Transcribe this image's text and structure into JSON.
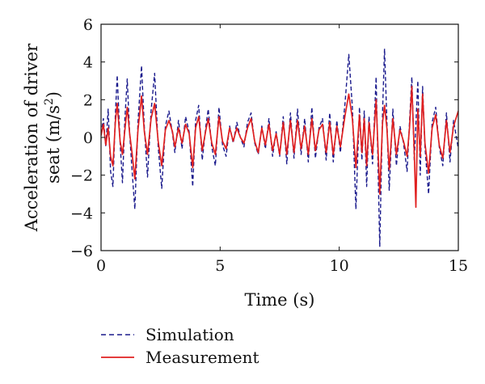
{
  "chart_data": {
    "type": "line",
    "title": "",
    "xlabel": "Time (s)",
    "ylabel_line1": "Acceleration of driver",
    "ylabel_line2_pre": "seat (m/s",
    "ylabel_line2_sup": "2",
    "ylabel_line2_post": ")",
    "xlim": [
      0,
      15
    ],
    "ylim": [
      -6,
      6
    ],
    "x_ticks": [
      0,
      5,
      10,
      15
    ],
    "x_tick_labels": [
      "0",
      "5",
      "10",
      "15"
    ],
    "y_ticks": [
      -6,
      -4,
      -2,
      0,
      2,
      4,
      6
    ],
    "y_tick_labels": [
      "−6",
      "−4",
      "−2",
      "0",
      "2",
      "4",
      "6"
    ],
    "grid": false,
    "legend_position": "below",
    "series": [
      {
        "name": "Simulation",
        "color": "#1a1a8c",
        "style": "dashed",
        "points": [
          [
            0.0,
            0.2
          ],
          [
            0.1,
            1.0
          ],
          [
            0.2,
            -0.5
          ],
          [
            0.3,
            1.5
          ],
          [
            0.4,
            -1.8
          ],
          [
            0.5,
            -2.6
          ],
          [
            0.6,
            1.2
          ],
          [
            0.68,
            3.3
          ],
          [
            0.8,
            -0.3
          ],
          [
            0.9,
            -2.4
          ],
          [
            1.0,
            1.0
          ],
          [
            1.1,
            3.1
          ],
          [
            1.2,
            0.2
          ],
          [
            1.3,
            -1.7
          ],
          [
            1.42,
            -3.8
          ],
          [
            1.55,
            0.8
          ],
          [
            1.7,
            3.8
          ],
          [
            1.82,
            0.5
          ],
          [
            1.95,
            -2.1
          ],
          [
            2.1,
            1.4
          ],
          [
            2.25,
            3.4
          ],
          [
            2.4,
            -0.5
          ],
          [
            2.55,
            -2.7
          ],
          [
            2.7,
            0.6
          ],
          [
            2.85,
            1.4
          ],
          [
            3.0,
            0.2
          ],
          [
            3.1,
            -0.8
          ],
          [
            3.25,
            0.9
          ],
          [
            3.4,
            -0.6
          ],
          [
            3.55,
            1.1
          ],
          [
            3.7,
            0.3
          ],
          [
            3.85,
            -2.6
          ],
          [
            3.97,
            0.9
          ],
          [
            4.1,
            1.7
          ],
          [
            4.25,
            -1.2
          ],
          [
            4.4,
            0.6
          ],
          [
            4.5,
            1.5
          ],
          [
            4.65,
            -0.5
          ],
          [
            4.8,
            -1.5
          ],
          [
            4.95,
            1.6
          ],
          [
            5.1,
            -0.4
          ],
          [
            5.25,
            -1.0
          ],
          [
            5.4,
            0.6
          ],
          [
            5.55,
            -0.3
          ],
          [
            5.7,
            0.8
          ],
          [
            5.85,
            0.0
          ],
          [
            6.0,
            -0.5
          ],
          [
            6.15,
            0.8
          ],
          [
            6.3,
            1.3
          ],
          [
            6.45,
            -0.3
          ],
          [
            6.6,
            -0.9
          ],
          [
            6.75,
            0.6
          ],
          [
            6.9,
            -0.6
          ],
          [
            7.05,
            1.0
          ],
          [
            7.2,
            -1.0
          ],
          [
            7.35,
            0.3
          ],
          [
            7.5,
            -1.0
          ],
          [
            7.65,
            1.1
          ],
          [
            7.8,
            -1.4
          ],
          [
            7.95,
            1.3
          ],
          [
            8.1,
            -1.1
          ],
          [
            8.25,
            1.5
          ],
          [
            8.4,
            -0.9
          ],
          [
            8.55,
            1.0
          ],
          [
            8.7,
            -1.3
          ],
          [
            8.85,
            1.6
          ],
          [
            9.0,
            -1.1
          ],
          [
            9.15,
            0.5
          ],
          [
            9.3,
            1.0
          ],
          [
            9.45,
            -1.2
          ],
          [
            9.6,
            1.3
          ],
          [
            9.75,
            -1.3
          ],
          [
            9.9,
            0.9
          ],
          [
            10.05,
            -0.8
          ],
          [
            10.25,
            1.9
          ],
          [
            10.4,
            4.4
          ],
          [
            10.55,
            1.6
          ],
          [
            10.7,
            -3.8
          ],
          [
            10.85,
            1.6
          ],
          [
            10.95,
            -1.2
          ],
          [
            11.05,
            1.4
          ],
          [
            11.15,
            -2.6
          ],
          [
            11.25,
            1.1
          ],
          [
            11.4,
            -1.4
          ],
          [
            11.55,
            3.2
          ],
          [
            11.7,
            -5.8
          ],
          [
            11.82,
            1.4
          ],
          [
            11.9,
            4.7
          ],
          [
            12.0,
            0.9
          ],
          [
            12.1,
            -2.8
          ],
          [
            12.25,
            1.5
          ],
          [
            12.4,
            -1.5
          ],
          [
            12.55,
            0.6
          ],
          [
            12.7,
            -0.3
          ],
          [
            12.85,
            -1.8
          ],
          [
            12.95,
            0.8
          ],
          [
            13.05,
            3.2
          ],
          [
            13.15,
            -1.2
          ],
          [
            13.3,
            3.0
          ],
          [
            13.4,
            -2.0
          ],
          [
            13.5,
            2.7
          ],
          [
            13.6,
            -0.5
          ],
          [
            13.75,
            -3.0
          ],
          [
            13.9,
            0.8
          ],
          [
            14.05,
            1.6
          ],
          [
            14.2,
            -0.5
          ],
          [
            14.35,
            -1.5
          ],
          [
            14.5,
            1.3
          ],
          [
            14.65,
            -1.3
          ],
          [
            14.8,
            0.9
          ],
          [
            15.0,
            -0.6
          ]
        ]
      },
      {
        "name": "Measurement",
        "color": "#e02020",
        "style": "solid",
        "points": [
          [
            0.0,
            0.1
          ],
          [
            0.1,
            0.7
          ],
          [
            0.2,
            -0.4
          ],
          [
            0.3,
            0.5
          ],
          [
            0.4,
            -1.0
          ],
          [
            0.5,
            -1.5
          ],
          [
            0.6,
            0.8
          ],
          [
            0.68,
            1.8
          ],
          [
            0.8,
            -0.2
          ],
          [
            0.9,
            -0.9
          ],
          [
            1.0,
            0.4
          ],
          [
            1.1,
            1.6
          ],
          [
            1.2,
            0.2
          ],
          [
            1.3,
            -0.8
          ],
          [
            1.42,
            -2.2
          ],
          [
            1.55,
            0.4
          ],
          [
            1.7,
            2.2
          ],
          [
            1.82,
            0.3
          ],
          [
            1.95,
            -0.9
          ],
          [
            2.1,
            1.0
          ],
          [
            2.25,
            1.8
          ],
          [
            2.4,
            -0.2
          ],
          [
            2.55,
            -1.5
          ],
          [
            2.7,
            0.4
          ],
          [
            2.85,
            0.9
          ],
          [
            3.0,
            0.3
          ],
          [
            3.1,
            -0.5
          ],
          [
            3.25,
            0.5
          ],
          [
            3.4,
            -0.3
          ],
          [
            3.55,
            0.7
          ],
          [
            3.7,
            0.2
          ],
          [
            3.85,
            -1.6
          ],
          [
            3.97,
            0.5
          ],
          [
            4.1,
            1.1
          ],
          [
            4.25,
            -0.7
          ],
          [
            4.4,
            0.4
          ],
          [
            4.5,
            1.0
          ],
          [
            4.65,
            -0.3
          ],
          [
            4.8,
            -0.9
          ],
          [
            4.95,
            1.1
          ],
          [
            5.1,
            -0.2
          ],
          [
            5.25,
            -0.6
          ],
          [
            5.4,
            0.5
          ],
          [
            5.55,
            -0.2
          ],
          [
            5.7,
            0.5
          ],
          [
            5.85,
            0.0
          ],
          [
            6.0,
            -0.3
          ],
          [
            6.15,
            0.5
          ],
          [
            6.3,
            1.0
          ],
          [
            6.45,
            -0.2
          ],
          [
            6.6,
            -0.8
          ],
          [
            6.75,
            0.5
          ],
          [
            6.9,
            -0.4
          ],
          [
            7.05,
            0.7
          ],
          [
            7.2,
            -0.7
          ],
          [
            7.35,
            0.2
          ],
          [
            7.5,
            -0.9
          ],
          [
            7.65,
            0.8
          ],
          [
            7.8,
            -0.9
          ],
          [
            7.95,
            0.9
          ],
          [
            8.1,
            -0.8
          ],
          [
            8.25,
            0.9
          ],
          [
            8.4,
            -0.6
          ],
          [
            8.55,
            0.6
          ],
          [
            8.7,
            -0.9
          ],
          [
            8.85,
            1.0
          ],
          [
            9.0,
            -0.7
          ],
          [
            9.15,
            0.4
          ],
          [
            9.3,
            0.7
          ],
          [
            9.45,
            -0.8
          ],
          [
            9.6,
            0.8
          ],
          [
            9.75,
            -0.9
          ],
          [
            9.9,
            0.6
          ],
          [
            10.05,
            -0.5
          ],
          [
            10.25,
            1.2
          ],
          [
            10.4,
            2.3
          ],
          [
            10.55,
            1.0
          ],
          [
            10.7,
            -1.6
          ],
          [
            10.85,
            1.2
          ],
          [
            10.95,
            -0.8
          ],
          [
            11.05,
            1.0
          ],
          [
            11.15,
            -1.5
          ],
          [
            11.25,
            0.8
          ],
          [
            11.4,
            -0.9
          ],
          [
            11.55,
            2.0
          ],
          [
            11.7,
            -3.0
          ],
          [
            11.82,
            0.8
          ],
          [
            11.9,
            1.7
          ],
          [
            12.0,
            0.5
          ],
          [
            12.1,
            -1.7
          ],
          [
            12.25,
            1.0
          ],
          [
            12.4,
            -0.9
          ],
          [
            12.55,
            0.4
          ],
          [
            12.7,
            -0.2
          ],
          [
            12.85,
            -1.0
          ],
          [
            12.95,
            0.5
          ],
          [
            13.05,
            2.7
          ],
          [
            13.15,
            -0.8
          ],
          [
            13.22,
            -3.7
          ],
          [
            13.3,
            1.5
          ],
          [
            13.4,
            -1.0
          ],
          [
            13.5,
            2.3
          ],
          [
            13.6,
            -0.3
          ],
          [
            13.75,
            -1.9
          ],
          [
            13.9,
            0.5
          ],
          [
            14.05,
            1.2
          ],
          [
            14.2,
            -0.4
          ],
          [
            14.35,
            -1.1
          ],
          [
            14.5,
            0.9
          ],
          [
            14.65,
            -0.8
          ],
          [
            14.8,
            0.6
          ],
          [
            15.0,
            1.4
          ]
        ]
      }
    ]
  }
}
